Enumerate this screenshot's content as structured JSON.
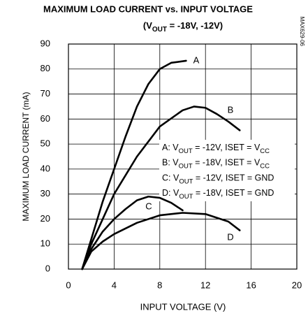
{
  "chart_data": {
    "type": "line",
    "title": "MAXIMUM LOAD CURRENT vs. INPUT VOLTAGE",
    "subtitle": [
      "(V",
      "OUT",
      " = -18V, -12V)"
    ],
    "x_label": "INPUT VOLTAGE (V)",
    "y_label": "MAXIMUM LOAD CURRENT (mA)",
    "side_label": "MAX629-06",
    "xlim": [
      0,
      20
    ],
    "xticks": [
      0,
      4,
      8,
      12,
      16,
      20
    ],
    "ylim": [
      0,
      90
    ],
    "yticks": [
      0,
      10,
      20,
      30,
      40,
      50,
      60,
      70,
      80,
      90
    ],
    "grid": true,
    "legend": [
      [
        "A: V",
        "OUT",
        " = -12V, ISET = V",
        "CC"
      ],
      [
        "B: V",
        "OUT",
        " = -18V, ISET = V",
        "CC"
      ],
      [
        "C: V",
        "OUT",
        " = -12V, ISET = GND"
      ],
      [
        "D: V",
        "OUT",
        " = -18V, ISET = GND"
      ]
    ],
    "series": [
      {
        "name": "A",
        "color": "#000000",
        "x": [
          1.2,
          2,
          3,
          4,
          5,
          6,
          7,
          8,
          9,
          10.3
        ],
        "values": [
          0,
          12,
          27,
          40,
          53,
          65,
          74,
          80,
          82.5,
          83.3
        ]
      },
      {
        "name": "B",
        "color": "#000000",
        "x": [
          1.2,
          2,
          4,
          6,
          8,
          10,
          11,
          12,
          13,
          14,
          15
        ],
        "values": [
          0,
          10,
          30,
          45,
          57,
          63.5,
          65,
          64.5,
          62,
          59,
          55.5
        ]
      },
      {
        "name": "C",
        "color": "#000000",
        "x": [
          1.2,
          2,
          3,
          4,
          5,
          6,
          7,
          8,
          9,
          10
        ],
        "values": [
          0,
          8,
          15,
          20,
          24,
          27.5,
          29,
          28.5,
          26.5,
          23.5
        ]
      },
      {
        "name": "D",
        "color": "#000000",
        "x": [
          1.2,
          2,
          3,
          4,
          6,
          8,
          10,
          12,
          14,
          15
        ],
        "values": [
          0,
          7,
          11,
          14,
          18.5,
          21.5,
          22.5,
          22,
          19,
          15.5
        ]
      }
    ]
  }
}
